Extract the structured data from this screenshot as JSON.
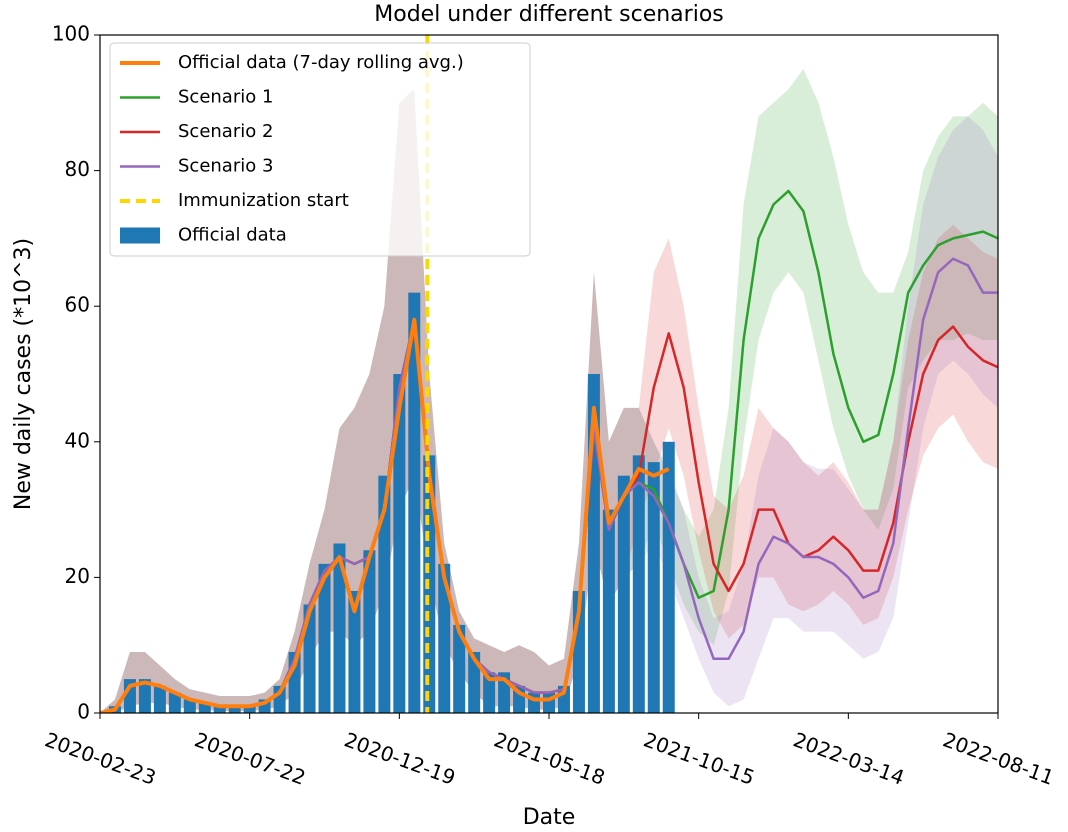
{
  "chart_data": {
    "type": "line",
    "title": "Model under different scenarios",
    "xlabel": "Date",
    "ylabel": "New daily cases (*10^3)",
    "legend": "upper left",
    "x": [
      "2020-02-23",
      "2020-03-09",
      "2020-03-24",
      "2020-04-08",
      "2020-04-23",
      "2020-05-08",
      "2020-05-23",
      "2020-06-07",
      "2020-06-22",
      "2020-07-07",
      "2020-07-22",
      "2020-08-06",
      "2020-08-21",
      "2020-09-05",
      "2020-09-20",
      "2020-10-05",
      "2020-10-20",
      "2020-11-04",
      "2020-11-19",
      "2020-12-04",
      "2020-12-19",
      "2021-01-03",
      "2021-01-18",
      "2021-02-02",
      "2021-02-17",
      "2021-03-04",
      "2021-03-19",
      "2021-04-03",
      "2021-04-18",
      "2021-05-03",
      "2021-05-18",
      "2021-06-02",
      "2021-06-17",
      "2021-07-02",
      "2021-07-17",
      "2021-08-01",
      "2021-08-16",
      "2021-08-31",
      "2021-09-15",
      "2021-09-30",
      "2021-10-15",
      "2021-10-30",
      "2021-11-14",
      "2021-11-29",
      "2021-12-14",
      "2021-12-29",
      "2022-01-13",
      "2022-01-28",
      "2022-02-12",
      "2022-02-27",
      "2022-03-14",
      "2022-03-29",
      "2022-04-13",
      "2022-04-28",
      "2022-05-13",
      "2022-05-28",
      "2022-06-12",
      "2022-06-27",
      "2022-07-12",
      "2022-07-27",
      "2022-08-11"
    ],
    "xlim": [
      "2020-02-23",
      "2022-08-11"
    ],
    "xticks": [
      "2020-02-23",
      "2020-07-22",
      "2020-12-19",
      "2021-05-18",
      "2021-10-15",
      "2022-03-14",
      "2022-08-11"
    ],
    "ylim": [
      0,
      100
    ],
    "yticks": [
      0,
      20,
      40,
      60,
      80,
      100
    ],
    "bars": {
      "name": "Official data",
      "color": "#1f77b4",
      "values": [
        0,
        1,
        5,
        5,
        4,
        3,
        2,
        1.5,
        1,
        1,
        1,
        2,
        4,
        9,
        16,
        22,
        25,
        18,
        24,
        35,
        50,
        62,
        38,
        22,
        13,
        9,
        6,
        6,
        4,
        3,
        3,
        4,
        18,
        50,
        30,
        35,
        38,
        37,
        40,
        null,
        null,
        null,
        null,
        null,
        null,
        null,
        null,
        null,
        null,
        null,
        null,
        null,
        null,
        null,
        null,
        null,
        null,
        null,
        null,
        null,
        null
      ]
    },
    "series": [
      {
        "name": "Official data (7-day rolling avg.)",
        "color": "#ff7f0e",
        "values": [
          0,
          0.5,
          4,
          4.5,
          4,
          3,
          2,
          1.5,
          1,
          1,
          1,
          1.5,
          3,
          7,
          15,
          20,
          23,
          15,
          23,
          30,
          45,
          58,
          35,
          20,
          12,
          8,
          5,
          5,
          3,
          2,
          2,
          3,
          15,
          45,
          28,
          32,
          36,
          35,
          36,
          null,
          null,
          null,
          null,
          null,
          null,
          null,
          null,
          null,
          null,
          null,
          null,
          null,
          null,
          null,
          null,
          null,
          null,
          null,
          null,
          null,
          null
        ]
      },
      {
        "name": "Scenario 1",
        "color": "#2ca02c",
        "values": [
          0,
          0.5,
          4,
          4.5,
          4,
          3,
          2,
          1.5,
          1,
          1,
          1,
          1.5,
          3,
          8,
          16,
          21,
          23,
          22,
          23,
          30,
          48,
          58,
          36,
          20,
          12,
          8,
          6,
          5,
          4,
          3,
          3,
          3.5,
          15,
          42,
          27,
          32,
          34,
          33,
          28,
          22,
          17,
          18,
          30,
          55,
          70,
          75,
          77,
          74,
          65,
          53,
          45,
          40,
          41,
          50,
          62,
          66,
          69,
          70,
          70.5,
          71,
          70
        ],
        "upper": [
          0,
          2,
          9,
          9,
          7,
          5,
          3.5,
          3,
          2.5,
          2.5,
          2.5,
          3,
          5,
          12,
          22,
          30,
          42,
          45,
          50,
          60,
          90,
          92,
          50,
          25,
          15,
          11,
          10,
          9,
          10,
          9,
          7,
          8,
          25,
          65,
          40,
          45,
          45,
          40,
          35,
          30,
          26,
          30,
          45,
          75,
          88,
          90,
          92,
          95,
          90,
          82,
          72,
          65,
          62,
          62,
          68,
          80,
          85,
          88,
          88,
          90,
          88
        ],
        "lower": [
          0,
          0,
          1,
          1.5,
          1.5,
          1,
          0.5,
          0.5,
          0.3,
          0.3,
          0.3,
          0.5,
          1,
          3,
          8,
          12,
          12,
          10,
          12,
          18,
          30,
          35,
          20,
          10,
          6,
          3,
          1,
          1,
          1,
          0.5,
          0.5,
          1,
          8,
          25,
          16,
          20,
          22,
          28,
          22,
          16,
          12,
          10,
          18,
          40,
          55,
          62,
          65,
          62,
          52,
          42,
          35,
          30,
          27,
          33,
          48,
          52,
          55,
          55,
          56,
          55,
          55
        ]
      },
      {
        "name": "Scenario 2",
        "color": "#d62728",
        "values": [
          0,
          0.5,
          4,
          4.5,
          4,
          3,
          2,
          1.5,
          1,
          1,
          1,
          1.5,
          3,
          8,
          16,
          21,
          23,
          22,
          23,
          30,
          48,
          58,
          36,
          20,
          12,
          8,
          6,
          5,
          4,
          3,
          3,
          3.5,
          15,
          42,
          27,
          32,
          35,
          48,
          56,
          48,
          34,
          22,
          18,
          22,
          30,
          30,
          25,
          23,
          24,
          26,
          24,
          21,
          21,
          28,
          40,
          50,
          55,
          57,
          54,
          52,
          51
        ],
        "upper": [
          0,
          2,
          9,
          9,
          7,
          5,
          3.5,
          3,
          2.5,
          2.5,
          2.5,
          3,
          5,
          12,
          22,
          30,
          42,
          45,
          50,
          60,
          90,
          92,
          50,
          25,
          15,
          11,
          10,
          9,
          10,
          9,
          7,
          8,
          25,
          65,
          40,
          45,
          45,
          65,
          70,
          60,
          45,
          32,
          30,
          35,
          45,
          42,
          40,
          37,
          35,
          37,
          34,
          30,
          30,
          40,
          55,
          65,
          70,
          72,
          70,
          68,
          67
        ],
        "lower": [
          0,
          0,
          1,
          1.5,
          1.5,
          1,
          0.5,
          0.5,
          0.3,
          0.3,
          0.3,
          0.5,
          1,
          3,
          8,
          12,
          12,
          10,
          12,
          18,
          30,
          35,
          20,
          10,
          6,
          3,
          1,
          1,
          1,
          0.5,
          0.5,
          1,
          8,
          25,
          16,
          20,
          28,
          35,
          42,
          35,
          24,
          15,
          11,
          13,
          20,
          20,
          16,
          15,
          16,
          18,
          16,
          13,
          14,
          20,
          30,
          38,
          42,
          44,
          40,
          37,
          36
        ]
      },
      {
        "name": "Scenario 3",
        "color": "#9467bd",
        "values": [
          0,
          0.5,
          4,
          4.5,
          4,
          3,
          2,
          1.5,
          1,
          1,
          1,
          1.5,
          3,
          8,
          16,
          21,
          23,
          22,
          23,
          30,
          48,
          58,
          36,
          20,
          12,
          8,
          6,
          5,
          4,
          3,
          3,
          3.5,
          15,
          42,
          27,
          32,
          34,
          32,
          28,
          22,
          14,
          8,
          8,
          12,
          22,
          26,
          25,
          23,
          23,
          22,
          20,
          17,
          18,
          25,
          42,
          58,
          65,
          67,
          66,
          62,
          62
        ],
        "upper": [
          0,
          2,
          9,
          9,
          7,
          5,
          3.5,
          3,
          2.5,
          2.5,
          2.5,
          3,
          5,
          12,
          22,
          30,
          42,
          45,
          50,
          60,
          90,
          92,
          50,
          25,
          15,
          11,
          10,
          9,
          10,
          9,
          7,
          8,
          25,
          65,
          40,
          45,
          45,
          40,
          36,
          30,
          20,
          14,
          15,
          22,
          35,
          42,
          40,
          37,
          36,
          36,
          33,
          30,
          30,
          40,
          60,
          75,
          82,
          86,
          88,
          86,
          82
        ],
        "lower": [
          0,
          0,
          1,
          1.5,
          1.5,
          1,
          0.5,
          0.5,
          0.3,
          0.3,
          0.3,
          0.5,
          1,
          3,
          8,
          12,
          12,
          10,
          12,
          18,
          30,
          35,
          20,
          10,
          6,
          3,
          1,
          1,
          1,
          0.5,
          0.5,
          1,
          8,
          25,
          16,
          20,
          22,
          25,
          20,
          14,
          8,
          3,
          1,
          2,
          8,
          14,
          14,
          12,
          12,
          12,
          10,
          8,
          9,
          14,
          28,
          42,
          50,
          52,
          50,
          47,
          45
        ]
      }
    ],
    "vline": {
      "name": "Immunization start",
      "x": "2021-01-16",
      "color": "#ffd700"
    }
  }
}
